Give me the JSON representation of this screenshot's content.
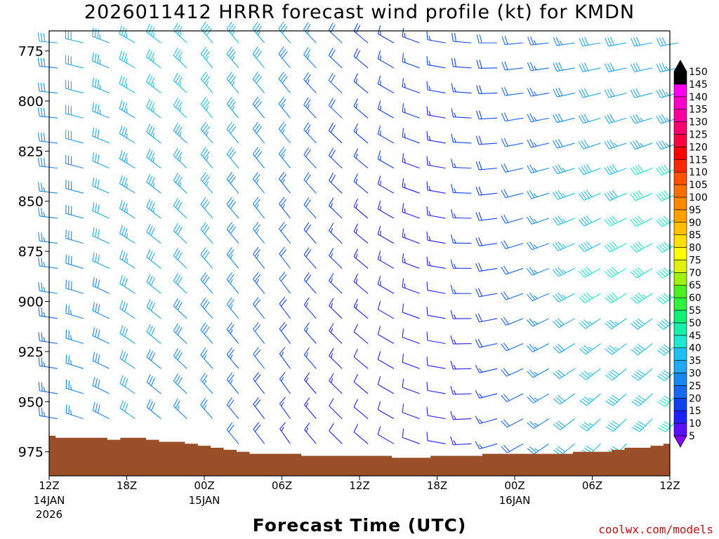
{
  "chart_data": {
    "type": "wind_barb_profile",
    "title": "2026011412 HRRR forecast wind profile (kt) for KMDN",
    "xlabel": "Forecast Time (UTC)",
    "ylabel": "",
    "credit": "coolwx.com/models",
    "x_range_hours": [
      0,
      48
    ],
    "y_range_hPa": [
      987,
      765
    ],
    "y_ticks": [
      775,
      800,
      825,
      850,
      875,
      900,
      925,
      950,
      975
    ],
    "x_ticks": [
      {
        "hour": 0,
        "label": "12Z",
        "sub1": "14JAN",
        "sub2": "2026"
      },
      {
        "hour": 6,
        "label": "18Z",
        "sub1": "",
        "sub2": ""
      },
      {
        "hour": 12,
        "label": "00Z",
        "sub1": "15JAN",
        "sub2": ""
      },
      {
        "hour": 18,
        "label": "06Z",
        "sub1": "",
        "sub2": ""
      },
      {
        "hour": 24,
        "label": "12Z",
        "sub1": "",
        "sub2": ""
      },
      {
        "hour": 30,
        "label": "18Z",
        "sub1": "",
        "sub2": ""
      },
      {
        "hour": 36,
        "label": "00Z",
        "sub1": "16JAN",
        "sub2": ""
      },
      {
        "hour": 42,
        "label": "06Z",
        "sub1": "",
        "sub2": ""
      },
      {
        "hour": 48,
        "label": "12Z",
        "sub1": "",
        "sub2": ""
      }
    ],
    "colorbar": {
      "levels": [
        5,
        10,
        15,
        20,
        25,
        30,
        35,
        40,
        45,
        50,
        55,
        60,
        65,
        70,
        75,
        80,
        85,
        90,
        95,
        100,
        105,
        110,
        115,
        120,
        125,
        130,
        135,
        140,
        145,
        150
      ],
      "colors": [
        "#8a00ff",
        "#5a10ff",
        "#2020ff",
        "#1040f0",
        "#1868f0",
        "#1888f0",
        "#20a8f0",
        "#20c0f0",
        "#20e8d0",
        "#18f0a8",
        "#10f078",
        "#30f040",
        "#50f020",
        "#a0f010",
        "#e0f010",
        "#ffff00",
        "#ffe000",
        "#ffc000",
        "#ffa000",
        "#ff8800",
        "#ff7000",
        "#ff5000",
        "#ff2800",
        "#ff0000",
        "#ff0040",
        "#ff0070",
        "#ff00a0",
        "#ff00c8",
        "#ff00ee",
        "#000000"
      ]
    },
    "surface_pressure_hPa": [
      967,
      968,
      968,
      968,
      968,
      969,
      968,
      968,
      969,
      970,
      970,
      971,
      972,
      973,
      974,
      975,
      976,
      976,
      976,
      976,
      977,
      977,
      977,
      977,
      977,
      977,
      977,
      978,
      978,
      978,
      977,
      977,
      977,
      977,
      976,
      976,
      976,
      976,
      976,
      976,
      976,
      975,
      975,
      975,
      974,
      973,
      973,
      972,
      971
    ],
    "wind_field_summary": "Barbs every 2 h (x) and 12.5 hPa (y). Westerly to west-northwesterly 25-40 kt through 14JAN; winds weaken and back to westerly/southwesterly 10-20 kt by 15JAN 12Z-18Z; increasing southwesterly 30-50 kt in the low levels by 16JAN 06Z-12Z (max about 45-50 kt near 850-890 hPa).",
    "wind_keyframes": [
      {
        "hour": 0,
        "speed_upper": 30,
        "dir_upper": 275,
        "speed_lower": 22,
        "dir_lower": 280
      },
      {
        "hour": 6,
        "speed_upper": 36,
        "dir_upper": 300,
        "speed_lower": 30,
        "dir_lower": 305
      },
      {
        "hour": 12,
        "speed_upper": 38,
        "dir_upper": 320,
        "speed_lower": 24,
        "dir_lower": 318
      },
      {
        "hour": 18,
        "speed_upper": 30,
        "dir_upper": 320,
        "speed_lower": 14,
        "dir_lower": 325
      },
      {
        "hour": 24,
        "speed_upper": 18,
        "dir_upper": 310,
        "speed_lower": 10,
        "dir_lower": 310
      },
      {
        "hour": 30,
        "speed_upper": 16,
        "dir_upper": 280,
        "speed_lower": 10,
        "dir_lower": 280
      },
      {
        "hour": 36,
        "speed_upper": 22,
        "dir_upper": 265,
        "speed_lower": 20,
        "dir_lower": 240
      },
      {
        "hour": 42,
        "speed_upper": 30,
        "dir_upper": 260,
        "speed_lower": 38,
        "dir_lower": 225
      },
      {
        "hour": 48,
        "speed_upper": 32,
        "dir_upper": 260,
        "speed_lower": 42,
        "dir_lower": 220
      }
    ]
  }
}
